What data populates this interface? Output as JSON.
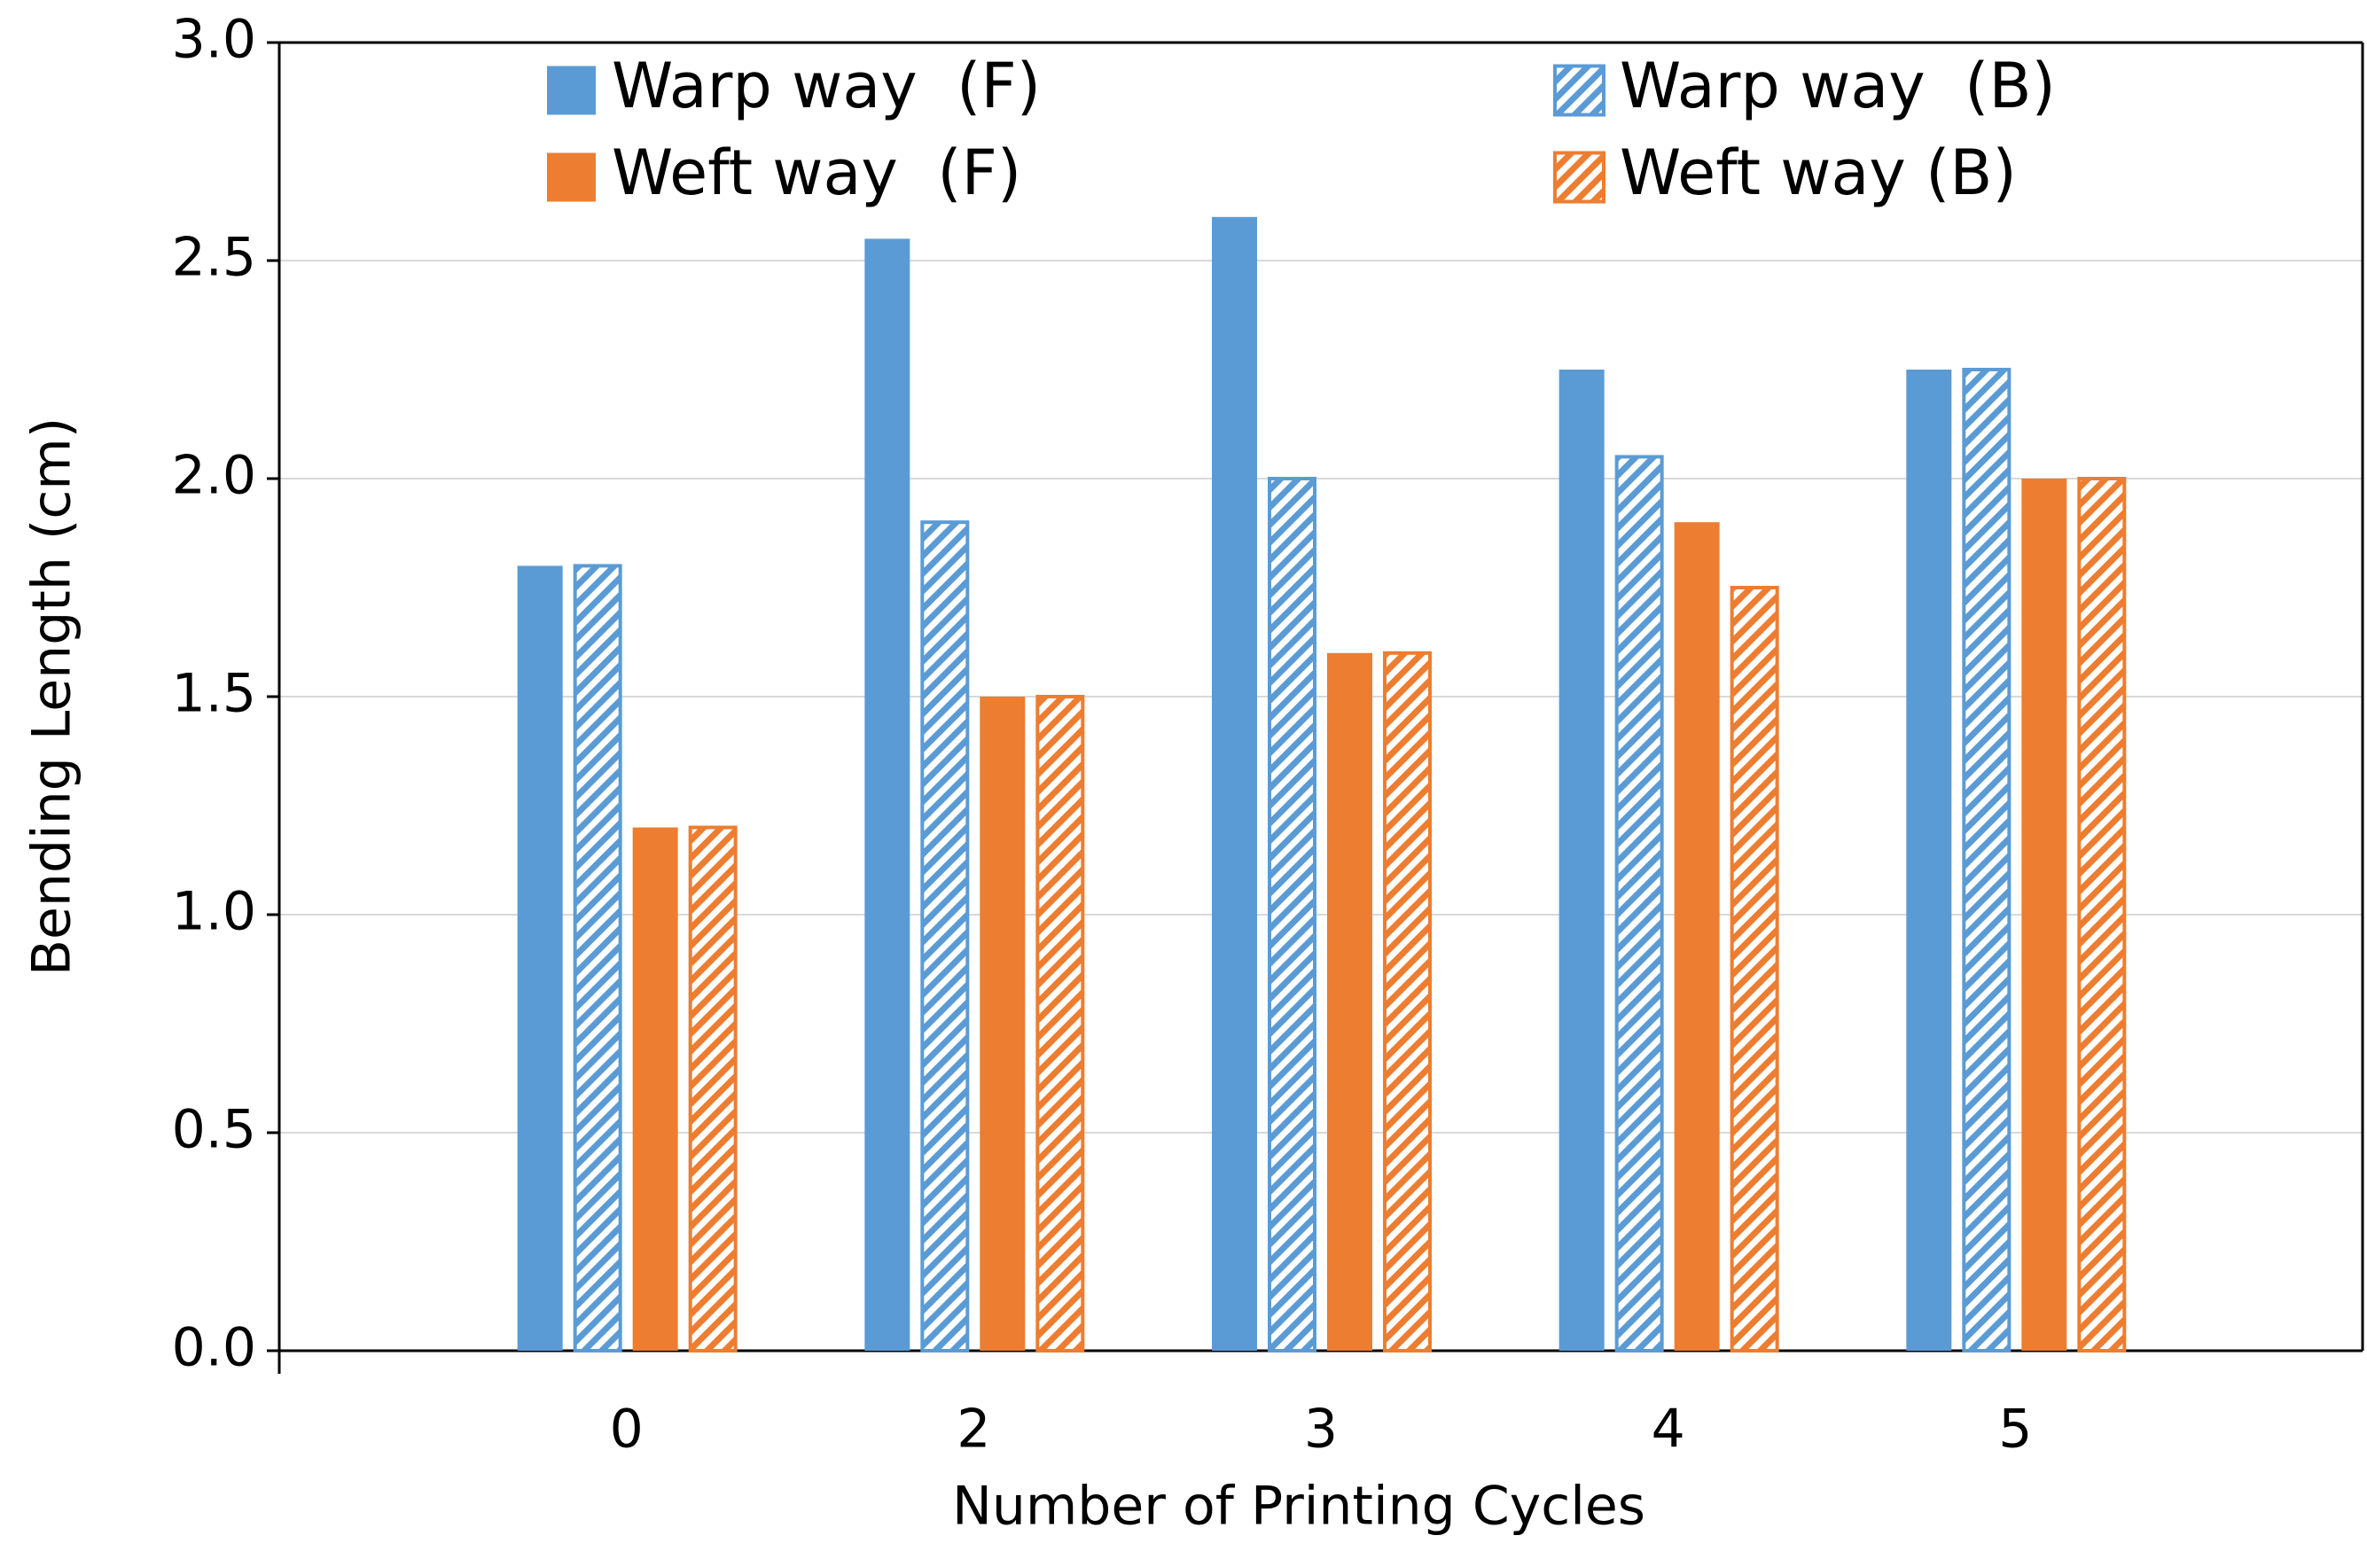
{
  "chart_data": {
    "type": "bar",
    "x_label": "Number of Printing Cycles",
    "y_label": "Bending Length (cm)",
    "categories": [
      "0",
      "2",
      "3",
      "4",
      "5"
    ],
    "series": [
      {
        "name": "Warp way  (F)",
        "color": "#5b9bd5",
        "hatch": false,
        "values": [
          1.8,
          2.55,
          2.6,
          2.25,
          2.25
        ]
      },
      {
        "name": "Warp way  (B)",
        "color": "#5b9bd5",
        "hatch": true,
        "values": [
          1.8,
          1.9,
          2.0,
          2.05,
          2.25
        ]
      },
      {
        "name": "Weft way  (F)",
        "color": "#ed7d31",
        "hatch": false,
        "values": [
          1.2,
          1.5,
          1.6,
          1.9,
          2.0
        ]
      },
      {
        "name": "Weft way (B)",
        "color": "#ed7d31",
        "hatch": true,
        "values": [
          1.2,
          1.5,
          1.6,
          1.75,
          2.0
        ]
      }
    ],
    "ylim": [
      0,
      3
    ],
    "yticks": [
      {
        "value": 0,
        "label": "0.0"
      },
      0.5,
      {
        "value": 1,
        "label": "1.0"
      },
      1.5,
      {
        "value": 2,
        "label": "2.0"
      },
      2.5,
      {
        "value": 3,
        "label": "3.0"
      }
    ],
    "grid": true,
    "legend": "top"
  }
}
